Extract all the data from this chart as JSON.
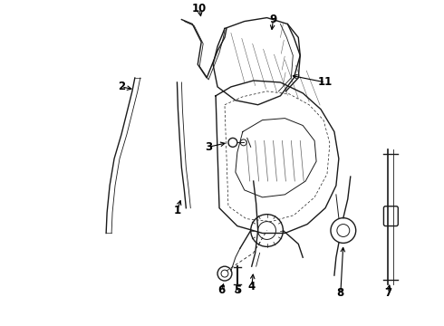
{
  "background_color": "#ffffff",
  "line_color": "#1a1a1a",
  "label_color": "#000000",
  "label_fontsize": 8.5,
  "figsize": [
    4.9,
    3.6
  ],
  "dpi": 100
}
